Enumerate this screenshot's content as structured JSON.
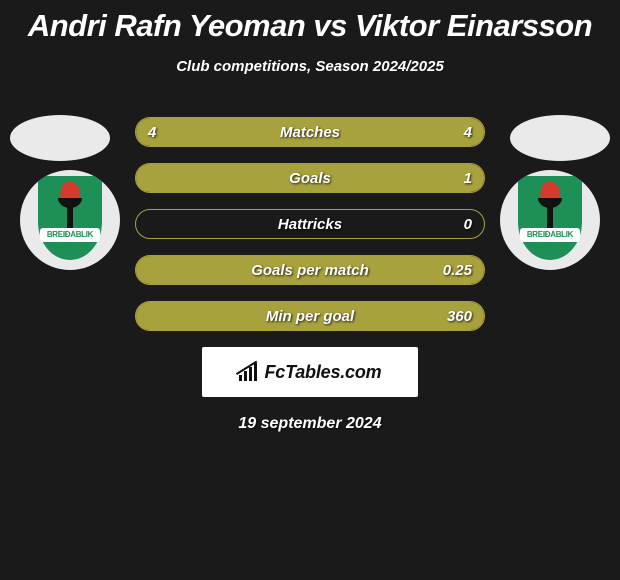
{
  "title": "Andri Rafn Yeoman vs Viktor Einarsson",
  "subtitle": "Club competitions, Season 2024/2025",
  "club_banner_text": "BREIÐABLIK",
  "colors": {
    "bar_fill": "#a7a23d",
    "bar_border": "#a7a23d",
    "background": "#1a1a1a",
    "shield_green": "#1f8f58",
    "flame_red": "#d63a2a"
  },
  "bars": [
    {
      "label": "Matches",
      "left_val": "4",
      "right_val": "4",
      "left_pct": 50,
      "right_pct": 50
    },
    {
      "label": "Goals",
      "left_val": "",
      "right_val": "1",
      "left_pct": 0,
      "right_pct": 100
    },
    {
      "label": "Hattricks",
      "left_val": "",
      "right_val": "0",
      "left_pct": 0,
      "right_pct": 0
    },
    {
      "label": "Goals per match",
      "left_val": "",
      "right_val": "0.25",
      "left_pct": 0,
      "right_pct": 100
    },
    {
      "label": "Min per goal",
      "left_val": "",
      "right_val": "360",
      "left_pct": 0,
      "right_pct": 100
    }
  ],
  "brand": "FcTables.com",
  "date": "19 september 2024"
}
